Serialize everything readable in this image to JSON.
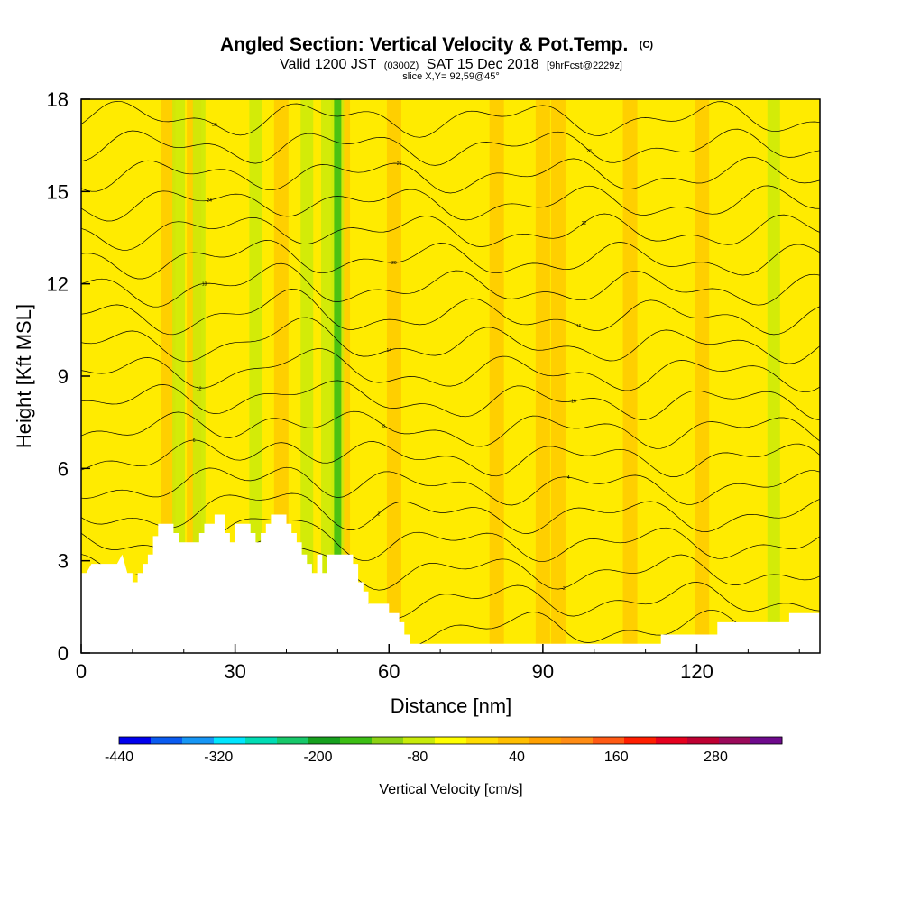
{
  "chart_data": {
    "type": "heatmap",
    "title": "Angled Section: Vertical Velocity & Pot.Temp.",
    "title_unit": "(C)",
    "subtitle": {
      "prefix": "Valid 1200 JST",
      "utc": "(0300Z)",
      "date": "SAT 15 Dec 2018",
      "forecast": "[9hrFcst@2229z]"
    },
    "slice": "slice X,Y= 92,59@45°",
    "xlabel": "Distance [nm]",
    "ylabel": "Height [Kft MSL]",
    "xlim": [
      0,
      144
    ],
    "ylim": [
      0,
      18
    ],
    "x_ticks": [
      "0",
      "30",
      "60",
      "90",
      "120"
    ],
    "x_tick_values": [
      0,
      30,
      60,
      90,
      120
    ],
    "y_ticks": [
      "0",
      "3",
      "6",
      "9",
      "12",
      "15",
      "18"
    ],
    "y_tick_values": [
      0,
      3,
      6,
      9,
      12,
      15,
      18
    ],
    "grid": false,
    "colorbar": {
      "label": "Vertical Velocity [cm/s]",
      "min": -440,
      "max": 360,
      "step": 40,
      "tick_labels": [
        "-440",
        "-320",
        "-200",
        "-80",
        "40",
        "160",
        "280"
      ],
      "tick_values": [
        -440,
        -320,
        -200,
        -80,
        40,
        160,
        280
      ],
      "colors": [
        "#0000ee",
        "#0a5bf0",
        "#1696f5",
        "#00e6ff",
        "#00dcb4",
        "#17c86a",
        "#16a01e",
        "#3cbe14",
        "#8cd214",
        "#c8eb0a",
        "#ffff00",
        "#ffdc00",
        "#ffbe00",
        "#ffa000",
        "#ff8c14",
        "#ff5a14",
        "#ff1e00",
        "#e6001e",
        "#be0032",
        "#9b0a5a",
        "#6e0a8c"
      ]
    },
    "terrain_kft": [
      [
        0,
        2.6
      ],
      [
        1,
        2.6
      ],
      [
        2,
        2.9
      ],
      [
        7,
        2.9
      ],
      [
        8,
        3.2
      ],
      [
        9,
        2.6
      ],
      [
        10,
        2.6
      ],
      [
        10,
        2.3
      ],
      [
        11,
        2.3
      ],
      [
        11,
        2.6
      ],
      [
        12,
        2.6
      ],
      [
        12,
        2.9
      ],
      [
        13,
        2.9
      ],
      [
        13,
        3.2
      ],
      [
        14,
        3.2
      ],
      [
        14,
        3.8
      ],
      [
        15,
        3.8
      ],
      [
        15,
        4.2
      ],
      [
        18,
        4.2
      ],
      [
        18,
        3.9
      ],
      [
        19,
        3.9
      ],
      [
        19,
        3.6
      ],
      [
        23,
        3.6
      ],
      [
        23,
        3.9
      ],
      [
        24,
        3.9
      ],
      [
        24,
        4.2
      ],
      [
        26,
        4.2
      ],
      [
        26,
        4.5
      ],
      [
        28,
        4.5
      ],
      [
        28,
        3.9
      ],
      [
        29,
        3.9
      ],
      [
        29,
        3.6
      ],
      [
        30,
        3.6
      ],
      [
        30,
        4.2
      ],
      [
        33,
        4.2
      ],
      [
        33,
        3.9
      ],
      [
        34,
        3.9
      ],
      [
        34,
        3.6
      ],
      [
        35,
        3.6
      ],
      [
        35,
        3.9
      ],
      [
        36,
        3.9
      ],
      [
        36,
        4.2
      ],
      [
        37,
        4.2
      ],
      [
        37,
        4.5
      ],
      [
        40,
        4.5
      ],
      [
        40,
        4.2
      ],
      [
        41,
        4.2
      ],
      [
        41,
        3.9
      ],
      [
        42,
        3.9
      ],
      [
        42,
        3.6
      ],
      [
        43,
        3.6
      ],
      [
        43,
        3.2
      ],
      [
        44,
        3.2
      ],
      [
        44,
        2.9
      ],
      [
        45,
        2.9
      ],
      [
        45,
        2.6
      ],
      [
        46,
        2.6
      ],
      [
        46,
        3.2
      ],
      [
        47,
        3.2
      ],
      [
        47,
        2.6
      ],
      [
        48,
        2.6
      ],
      [
        48,
        3.2
      ],
      [
        53,
        3.2
      ],
      [
        53,
        2.9
      ],
      [
        54,
        2.9
      ],
      [
        54,
        2.3
      ],
      [
        55,
        2.3
      ],
      [
        55,
        2.0
      ],
      [
        56,
        2.0
      ],
      [
        56,
        1.6
      ],
      [
        60,
        1.6
      ],
      [
        60,
        1.3
      ],
      [
        62,
        1.3
      ],
      [
        62,
        1.0
      ],
      [
        63,
        1.0
      ],
      [
        63,
        0.6
      ],
      [
        64,
        0.6
      ],
      [
        64,
        0.3
      ],
      [
        113,
        0.3
      ],
      [
        113,
        0.6
      ],
      [
        120,
        0.6
      ],
      [
        124,
        0.6
      ],
      [
        124,
        1.0
      ],
      [
        138,
        1.0
      ],
      [
        138,
        1.3
      ],
      [
        144,
        1.3
      ]
    ],
    "contour_interval_c": 2,
    "contour_labels": [
      "-6",
      "-4",
      "-2",
      "0",
      "2",
      "4",
      "6",
      "8",
      "10",
      "12",
      "14",
      "16",
      "18",
      "20",
      "22",
      "24",
      "26",
      "28",
      "30"
    ],
    "updraft_columns_nm": [
      17,
      22,
      39,
      51,
      61,
      81,
      90,
      93,
      107,
      121
    ],
    "downdraft_columns_nm": [
      19,
      23,
      34,
      44,
      48,
      50,
      135
    ]
  }
}
